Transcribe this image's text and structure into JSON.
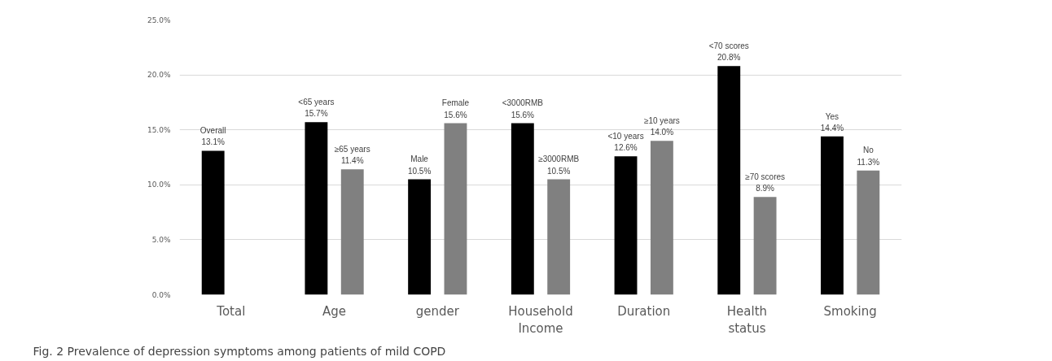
{
  "chart_data": {
    "type": "bar",
    "title": "Fig. 2 Prevalence of depression symptoms among patients of mild COPD",
    "categories": [
      "Total",
      "Age",
      "gender",
      "Household Income",
      "Duration",
      "Health status",
      "Smoking"
    ],
    "series": [
      {
        "color": "#000000",
        "values": [
          13.1,
          15.7,
          10.5,
          15.6,
          12.6,
          20.8,
          14.4
        ],
        "value_labels": [
          "Overall\n13.1%",
          "<65 years\n15.7%",
          "Male\n10.5%",
          "<3000RMB\n15.6%",
          "<10 years\n12.6%",
          "<70 scores\n20.8%",
          "Yes\n14.4%"
        ]
      },
      {
        "color": "#808080",
        "values": [
          null,
          11.4,
          15.6,
          10.5,
          14.0,
          8.9,
          11.3
        ],
        "value_labels": [
          null,
          "≥65 years\n11.4%",
          "Female\n15.6%",
          "≥3000RMB\n10.5%",
          "≥10 years\n14.0%",
          "≥70 scores\n8.9%",
          "No\n11.3%"
        ]
      }
    ],
    "ylim": [
      0,
      25
    ],
    "yticks": [
      {
        "value": 0,
        "label": "0.0%"
      },
      {
        "value": 5,
        "label": "5.0%"
      },
      {
        "value": 10,
        "label": "10.0%"
      },
      {
        "value": 15,
        "label": "15.0%"
      },
      {
        "value": 20,
        "label": "20.0%"
      },
      {
        "value": 25,
        "label": "25.0%"
      }
    ],
    "grid": "y"
  }
}
